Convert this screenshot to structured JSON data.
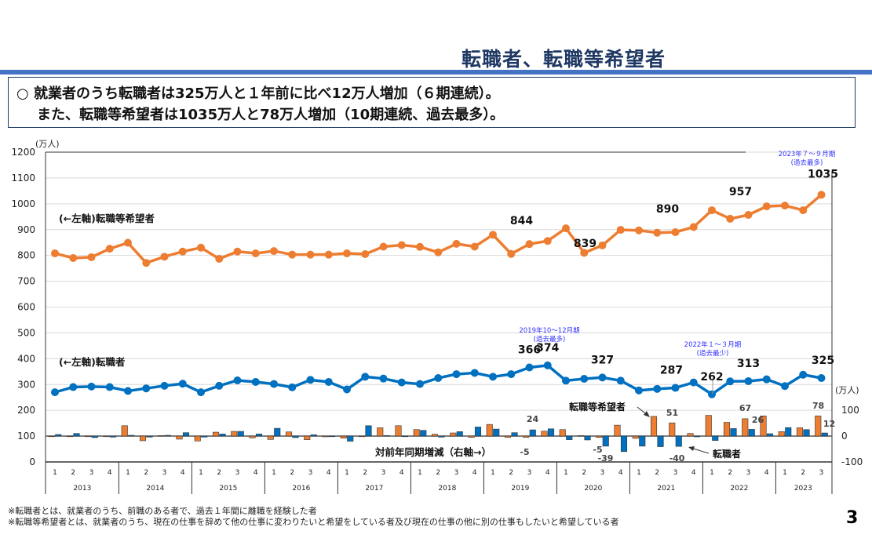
{
  "page": {
    "title": "転職者、転職等希望者",
    "summary_line1": "○ 就業者のうち転職者は325万人と１年前に比べ12万人増加（６期連続）。",
    "summary_line2": "また、転職等希望者は1035万人と78万人増加（10期連続、過去最多）。",
    "footnote1": "※転職者とは、就業者のうち、前職のある者で、過去１年間に離職を経験した者",
    "footnote2": "※転職等希望者とは、就業者のうち、現在の仕事を辞めて他の仕事に変わりたいと希望をしている者及び現在の仕事の他に別の仕事もしたいと希望している者",
    "page_number": "3"
  },
  "chart_data": {
    "type": "line+bar",
    "left_axis": {
      "unit": "(万人)",
      "ylim": [
        0,
        1200
      ],
      "ticks": [
        0,
        100,
        200,
        300,
        400,
        500,
        600,
        700,
        800,
        900,
        1000,
        1100,
        1200
      ]
    },
    "right_axis": {
      "unit": "(万人)",
      "ylim": [
        -100,
        100
      ],
      "ticks": [
        -100,
        0,
        100
      ]
    },
    "grid": true,
    "years": [
      "2013",
      "2014",
      "2015",
      "2016",
      "2017",
      "2018",
      "2019",
      "2020",
      "2021",
      "2022",
      "2023"
    ],
    "quarters_per_year": [
      4,
      4,
      4,
      4,
      4,
      4,
      4,
      4,
      4,
      4,
      3
    ],
    "colors": {
      "desired": "#ed7d31",
      "changers": "#0070c0"
    },
    "series": [
      {
        "name": "(←左軸)転職等希望者",
        "kind": "line",
        "axis": "left",
        "values": [
          808,
          790,
          793,
          826,
          849,
          771,
          795,
          815,
          830,
          787,
          815,
          808,
          817,
          803,
          803,
          803,
          808,
          805,
          834,
          840,
          833,
          812,
          845,
          834,
          880,
          806,
          844,
          856,
          905,
          810,
          839,
          899,
          897,
          888,
          890,
          910,
          975,
          942,
          957,
          990,
          993,
          975,
          1035
        ]
      },
      {
        "name": "(←左軸)転職者",
        "kind": "line",
        "axis": "left",
        "values": [
          270,
          290,
          292,
          290,
          275,
          285,
          295,
          303,
          270,
          295,
          316,
          310,
          302,
          289,
          318,
          310,
          281,
          330,
          323,
          308,
          302,
          325,
          340,
          345,
          330,
          340,
          366,
          374,
          315,
          322,
          327,
          315,
          277,
          283,
          287,
          308,
          262,
          312,
          313,
          320,
          294,
          338,
          325
        ]
      },
      {
        "name": "転職等希望者",
        "kind": "bar",
        "axis": "right",
        "values": [
          0,
          0,
          0,
          0,
          40,
          -18,
          2,
          -12,
          -19,
          15,
          18,
          -7,
          -13,
          16,
          -14,
          -3,
          -8,
          0,
          32,
          40,
          25,
          7,
          12,
          -5,
          45,
          -5,
          -5,
          19,
          25,
          2,
          -5,
          42,
          -9,
          76,
          51,
          10,
          80,
          53,
          67,
          78,
          17,
          32,
          78
        ]
      },
      {
        "name": "転職者",
        "kind": "bar",
        "axis": "right",
        "values": [
          6,
          10,
          -6,
          -4,
          3,
          -4,
          3,
          13,
          -4,
          8,
          18,
          8,
          30,
          -6,
          5,
          0,
          -20,
          40,
          2,
          0,
          22,
          -4,
          17,
          35,
          27,
          13,
          24,
          28,
          -14,
          -15,
          -39,
          -60,
          -39,
          -41,
          -40,
          -3,
          -17,
          29,
          26,
          9,
          33,
          25,
          12
        ]
      }
    ],
    "data_labels": {
      "desired": [
        {
          "i": 26,
          "t": "844"
        },
        {
          "i": 30,
          "t": "839"
        },
        {
          "i": 34,
          "t": "890"
        },
        {
          "i": 38,
          "t": "957"
        },
        {
          "i": 42,
          "t": "1035"
        }
      ],
      "changers": [
        {
          "i": 26,
          "t": "366"
        },
        {
          "i": 27,
          "t": "374"
        },
        {
          "i": 30,
          "t": "327"
        },
        {
          "i": 34,
          "t": "287"
        },
        {
          "i": 36,
          "t": "262"
        },
        {
          "i": 38,
          "t": "313"
        },
        {
          "i": 42,
          "t": "325"
        }
      ],
      "desired_diff": [
        {
          "i": 26,
          "t": "-5"
        },
        {
          "i": 30,
          "t": "-5"
        },
        {
          "i": 34,
          "t": "51"
        },
        {
          "i": 38,
          "t": "67"
        },
        {
          "i": 42,
          "t": "78"
        }
      ],
      "changers_diff": [
        {
          "i": 26,
          "t": "24"
        },
        {
          "i": 30,
          "t": "-39"
        },
        {
          "i": 34,
          "t": "-40"
        },
        {
          "i": 38,
          "t": "26"
        },
        {
          "i": 42,
          "t": "12"
        }
      ]
    },
    "annotations": {
      "peak_2019": [
        "2019年10～12月期",
        "(過去最多)"
      ],
      "low_2022": [
        "2022年１～３月期",
        "(過去最少)"
      ],
      "peak_2023": [
        "2023年７～９月期",
        "(過去最多)"
      ],
      "bar_label_desired": "転職等希望者",
      "bar_label_changers": "転職者",
      "bar_caption": "対前年同期増減（右軸→）"
    }
  }
}
